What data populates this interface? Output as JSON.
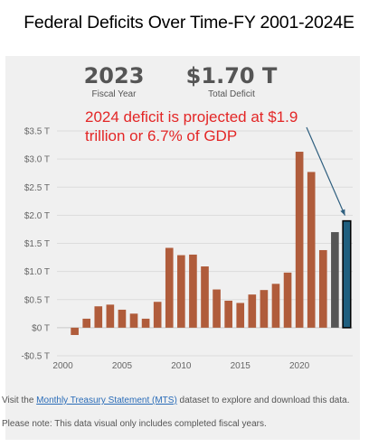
{
  "title": "Federal Deficits Over Time-FY 2001-2024E",
  "stats": {
    "year_value": "2023",
    "year_label": "Fiscal Year",
    "deficit_value": "$1.70 T",
    "deficit_label": "Total Deficit"
  },
  "annotation": "2024 deficit is projected at $1.9 trillion or 6.7% of GDP",
  "footnotes": {
    "line1_prefix": "Visit the ",
    "line1_link": "Monthly Treasury Statement (MTS)",
    "line1_suffix": " dataset to explore and download this data.",
    "line2": "Please note: This data visual only includes completed fiscal years."
  },
  "chart_data": {
    "type": "bar",
    "x": [
      2001,
      2002,
      2003,
      2004,
      2005,
      2006,
      2007,
      2008,
      2009,
      2010,
      2011,
      2012,
      2013,
      2014,
      2015,
      2016,
      2017,
      2018,
      2019,
      2020,
      2021,
      2022,
      2023,
      2024
    ],
    "values": [
      -0.13,
      0.16,
      0.38,
      0.41,
      0.32,
      0.25,
      0.16,
      0.46,
      1.42,
      1.29,
      1.3,
      1.09,
      0.68,
      0.48,
      0.44,
      0.59,
      0.67,
      0.78,
      0.98,
      3.13,
      2.77,
      1.38,
      1.7,
      1.9
    ],
    "categories_style": {
      "completed": "#b05c3b",
      "current_2023": "#555555",
      "projected_2024": "#1f5f7f",
      "projected_outline": "#000000"
    },
    "ylim": [
      -0.5,
      3.5
    ],
    "yticks": [
      -0.5,
      0,
      0.5,
      1.0,
      1.5,
      2.0,
      2.5,
      3.0,
      3.5
    ],
    "ytick_labels": [
      "-$0.5 T",
      "$0 T",
      "$0.5 T",
      "$1.0 T",
      "$1.5 T",
      "$2.0 T",
      "$2.5 T",
      "$3.0 T",
      "$3.5 T"
    ],
    "xticks": [
      2000,
      2005,
      2010,
      2015,
      2020
    ],
    "xtick_labels": [
      "2000",
      "2005",
      "2010",
      "2015",
      "2020"
    ],
    "xlim": [
      1999.5,
      2024.5
    ],
    "grid": true,
    "xlabel": "",
    "ylabel": ""
  }
}
